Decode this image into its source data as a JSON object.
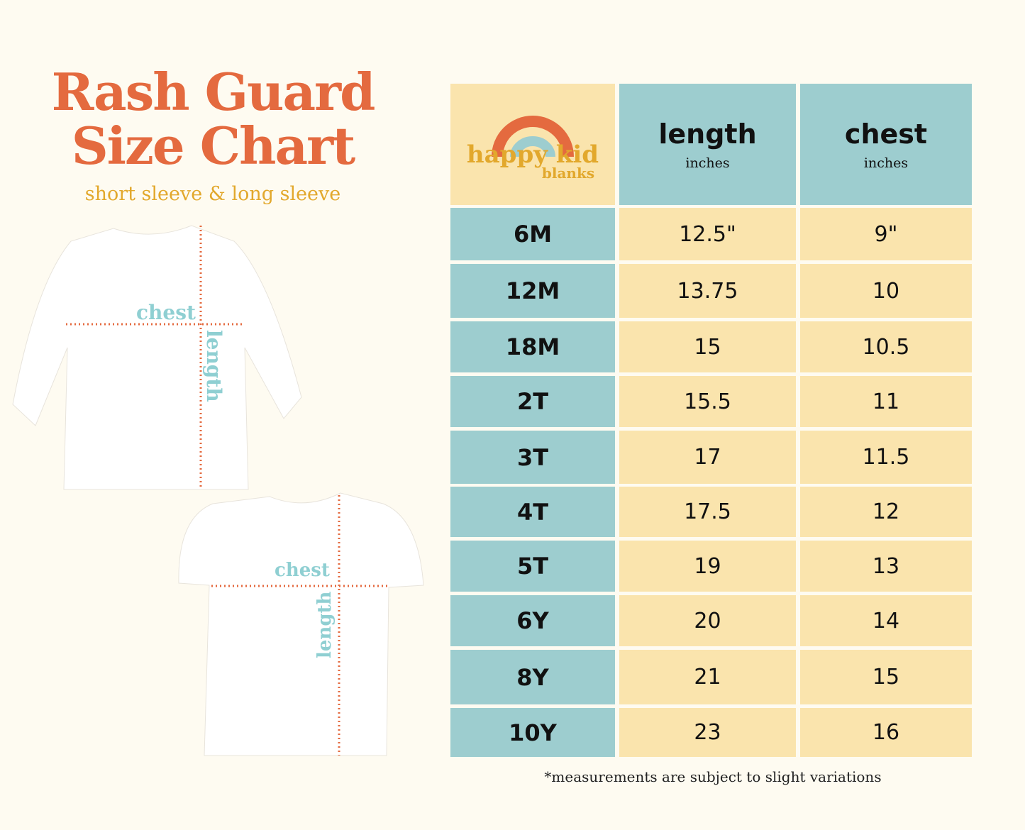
{
  "title_line1": "Rash Guard",
  "title_line2": "Size Chart",
  "subtitle": "short sleeve & long sleeve",
  "logo": {
    "line1": "happy kid",
    "line2": "blanks"
  },
  "diagram_labels": {
    "chest": "chest",
    "length": "length"
  },
  "table": {
    "headers": [
      {
        "label": "length",
        "unit": "inches"
      },
      {
        "label": "chest",
        "unit": "inches"
      }
    ],
    "rows": [
      {
        "size": "6M",
        "length": "12.5\"",
        "chest": "9\""
      },
      {
        "size": "12M",
        "length": "13.75",
        "chest": "10"
      },
      {
        "size": "18M",
        "length": "15",
        "chest": "10.5"
      },
      {
        "size": "2T",
        "length": "15.5",
        "chest": "11"
      },
      {
        "size": "3T",
        "length": "17",
        "chest": "11.5"
      },
      {
        "size": "4T",
        "length": "17.5",
        "chest": "12"
      },
      {
        "size": "5T",
        "length": "19",
        "chest": "13"
      },
      {
        "size": "6Y",
        "length": "20",
        "chest": "14"
      },
      {
        "size": "8Y",
        "length": "21",
        "chest": "15"
      },
      {
        "size": "10Y",
        "length": "23",
        "chest": "16"
      }
    ]
  },
  "footnote": "*measurements are subject to slight variations",
  "colors": {
    "orange": "#e46a3f",
    "teal": "#9dcdcf",
    "yellow": "#fae4ad",
    "gold": "#e2a82c",
    "background": "#fefbf1"
  }
}
